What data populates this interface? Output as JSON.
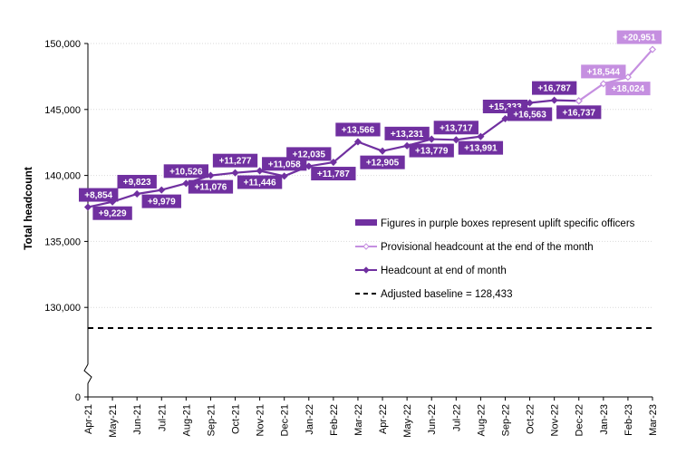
{
  "chart_data": {
    "type": "line",
    "ylabel": "Total headcount",
    "ylim": [
      125000,
      150000
    ],
    "y_ticks": [
      {
        "value": 130000,
        "label": "130,000"
      },
      {
        "value": 135000,
        "label": "135,000"
      },
      {
        "value": 140000,
        "label": "140,000"
      },
      {
        "value": 145000,
        "label": "145,000"
      },
      {
        "value": 150000,
        "label": "150,000"
      }
    ],
    "y_break_label": "0",
    "categories": [
      "Apr-21",
      "May-21",
      "Jun-21",
      "Jul-21",
      "Aug-21",
      "Sep-21",
      "Oct-21",
      "Nov-21",
      "Dec-21",
      "Jan-22",
      "Feb-22",
      "Mar-22",
      "Apr-22",
      "May-22",
      "Jun-22",
      "Jul-22",
      "Aug-22",
      "Sep-22",
      "Oct-22",
      "Nov-22",
      "Dec-22",
      "Jan-23",
      "Feb-23",
      "Mar-23"
    ],
    "series": [
      {
        "name": "Headcount at end of month",
        "color": "#7030a0",
        "values": [
          137600,
          138000,
          138600,
          138900,
          139400,
          140000,
          140200,
          140350,
          139950,
          140700,
          141000,
          142550,
          141850,
          142250,
          142750,
          142700,
          142950,
          144300,
          145500,
          145700,
          145650,
          null,
          null,
          null
        ]
      },
      {
        "name": "Provisional headcount at the end of the month",
        "color": "#c58fe0",
        "values": [
          null,
          null,
          null,
          null,
          null,
          null,
          null,
          null,
          null,
          null,
          null,
          null,
          null,
          null,
          null,
          null,
          null,
          null,
          null,
          null,
          145650,
          146950,
          147450,
          149550
        ]
      }
    ],
    "baseline": {
      "name": "Adjusted baseline = 128,433",
      "value": 128433
    },
    "uplift_labels": [
      {
        "text": "+8,854",
        "index": 0,
        "position": "above",
        "provisional": false
      },
      {
        "text": "+9,229",
        "index": 1,
        "position": "below",
        "provisional": false
      },
      {
        "text": "+9,823",
        "index": 2,
        "position": "above",
        "provisional": false
      },
      {
        "text": "+9,979",
        "index": 3,
        "position": "below",
        "provisional": false
      },
      {
        "text": "+10,526",
        "index": 4,
        "position": "above",
        "provisional": false
      },
      {
        "text": "+11,076",
        "index": 5,
        "position": "below",
        "provisional": false
      },
      {
        "text": "+11,277",
        "index": 6,
        "position": "above",
        "provisional": false
      },
      {
        "text": "+11,446",
        "index": 7,
        "position": "below",
        "provisional": false
      },
      {
        "text": "+11,058",
        "index": 8,
        "position": "above",
        "provisional": false
      },
      {
        "text": "+12,035",
        "index": 9,
        "position": "above",
        "provisional": false
      },
      {
        "text": "+11,787",
        "index": 10,
        "position": "below",
        "provisional": false
      },
      {
        "text": "+13,566",
        "index": 11,
        "position": "above",
        "provisional": false
      },
      {
        "text": "+12,905",
        "index": 12,
        "position": "below",
        "provisional": false
      },
      {
        "text": "+13,231",
        "index": 13,
        "position": "above",
        "provisional": false
      },
      {
        "text": "+13,779",
        "index": 14,
        "position": "below",
        "provisional": false
      },
      {
        "text": "+13,717",
        "index": 15,
        "position": "above",
        "provisional": false
      },
      {
        "text": "+13,991",
        "index": 16,
        "position": "below",
        "provisional": false
      },
      {
        "text": "+15,333",
        "index": 17,
        "position": "above",
        "provisional": false
      },
      {
        "text": "+16,563",
        "index": 18,
        "position": "below",
        "provisional": false
      },
      {
        "text": "+16,787",
        "index": 19,
        "position": "above",
        "provisional": false
      },
      {
        "text": "+16,737",
        "index": 20,
        "position": "below",
        "provisional": false
      },
      {
        "text": "+18,544",
        "index": 21,
        "position": "above",
        "provisional": true
      },
      {
        "text": "+18,024",
        "index": 22,
        "position": "below",
        "provisional": true
      },
      {
        "text": "+20,951",
        "index": 23,
        "position": "above",
        "provisional": true
      }
    ],
    "legend": {
      "placement": "center-right",
      "items": [
        {
          "text": "Figures in purple boxes represent uplift specific officers",
          "kind": "box",
          "color": "#7030a0"
        },
        {
          "text": "Provisional headcount at the end of the month",
          "kind": "line-marker",
          "color": "#c58fe0"
        },
        {
          "text": "Headcount at end of month",
          "kind": "line-marker",
          "color": "#7030a0"
        },
        {
          "text": "Adjusted baseline = 128,433",
          "kind": "dashed",
          "color": "#000000"
        }
      ]
    },
    "colors": {
      "main": "#7030a0",
      "provisional": "#c58fe0",
      "grid": "#d9d9d9"
    }
  }
}
